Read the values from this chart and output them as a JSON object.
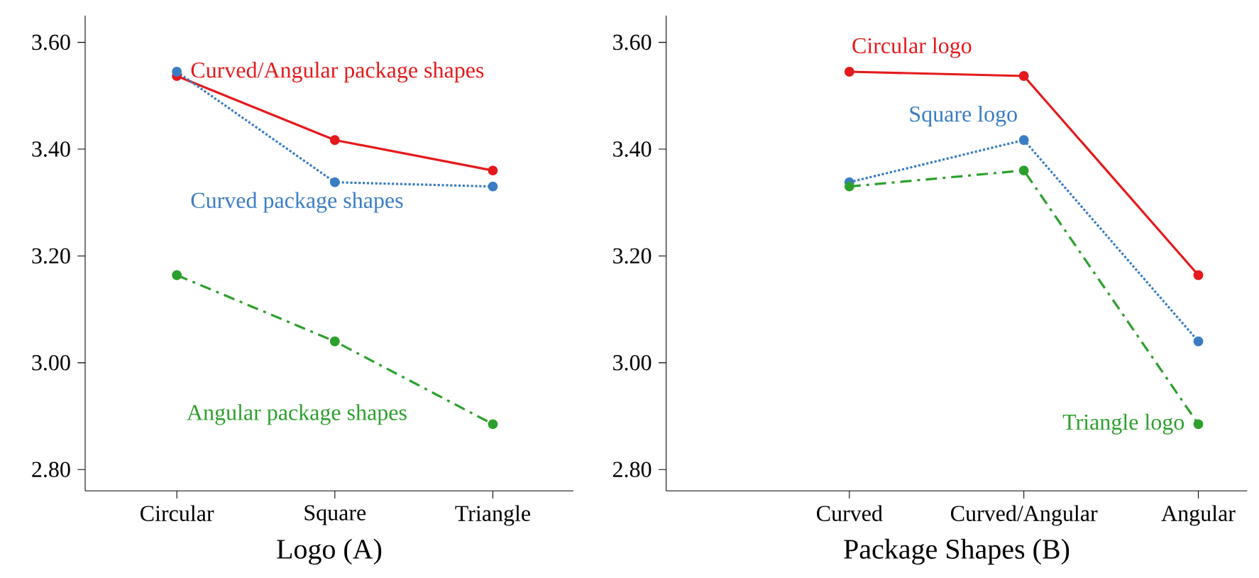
{
  "chart_data": [
    {
      "type": "line",
      "xlabel": "Logo (A)",
      "categories": [
        "Circular",
        "Square",
        "Triangle"
      ],
      "ylim": [
        2.76,
        3.65
      ],
      "yticks": [
        {
          "value": 2.8,
          "label": "2.80"
        },
        {
          "value": 3.0,
          "label": "3.00"
        },
        {
          "value": 3.2,
          "label": "3.20"
        },
        {
          "value": 3.4,
          "label": "3.40"
        },
        {
          "value": 3.6,
          "label": "3.60"
        }
      ],
      "series": [
        {
          "name": "Curved/Angular package shapes",
          "color": "#e41a1c",
          "line_style": "solid",
          "values": [
            3.537,
            3.417,
            3.36
          ]
        },
        {
          "name": "Curved package shapes",
          "color": "#3a7dc4",
          "line_style": "dotted",
          "values": [
            3.545,
            3.338,
            3.33
          ]
        },
        {
          "name": "Angular package shapes",
          "color": "#2ca02c",
          "line_style": "dashed",
          "values": [
            3.164,
            3.04,
            2.885
          ]
        }
      ],
      "marker": "circle",
      "legend": false,
      "grid": false
    },
    {
      "type": "line",
      "xlabel": "Package Shapes (B)",
      "categories": [
        "Curved",
        "Curved/Angular",
        "Angular"
      ],
      "ylim": [
        2.76,
        3.65
      ],
      "yticks": [
        {
          "value": 2.8,
          "label": "2.80"
        },
        {
          "value": 3.0,
          "label": "3.00"
        },
        {
          "value": 3.2,
          "label": "3.20"
        },
        {
          "value": 3.4,
          "label": "3.40"
        },
        {
          "value": 3.6,
          "label": "3.60"
        }
      ],
      "series": [
        {
          "name": "Circular logo",
          "color": "#e41a1c",
          "line_style": "solid",
          "values": [
            3.545,
            3.537,
            3.164
          ]
        },
        {
          "name": "Square logo",
          "color": "#3a7dc4",
          "line_style": "dotted",
          "values": [
            3.338,
            3.417,
            3.04
          ]
        },
        {
          "name": "Triangle logo",
          "color": "#2ca02c",
          "line_style": "dashed",
          "values": [
            3.33,
            3.36,
            2.885
          ]
        }
      ],
      "marker": "circle",
      "legend": false,
      "grid": false
    }
  ]
}
